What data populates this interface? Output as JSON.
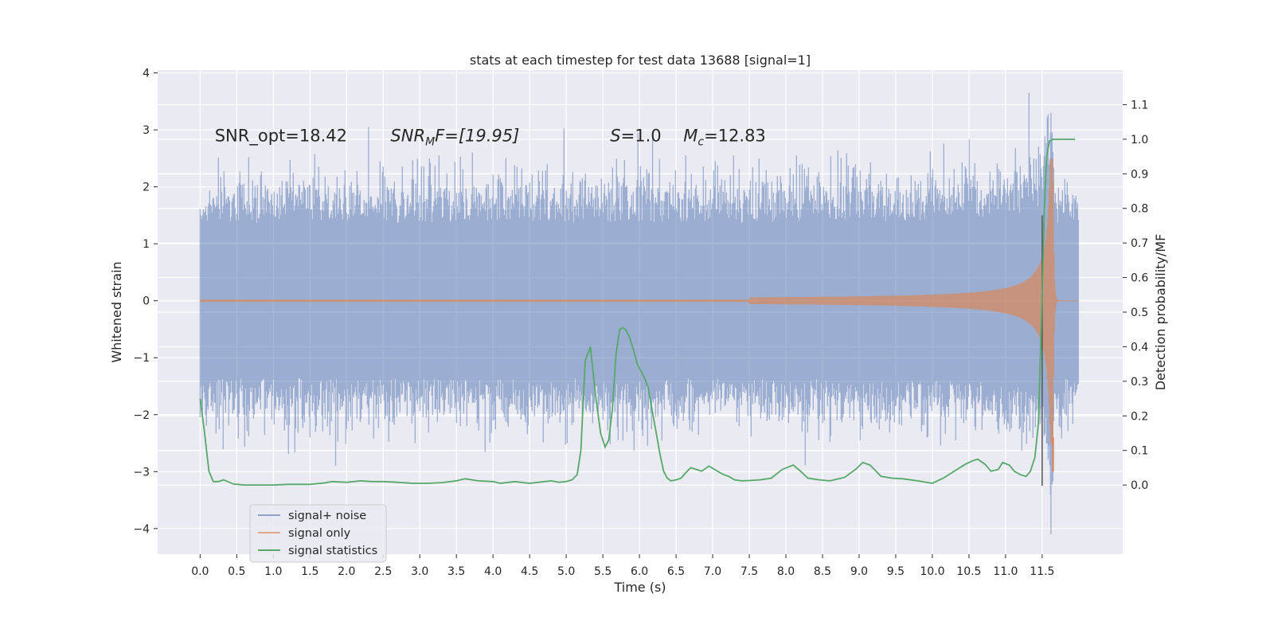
{
  "chart_data": {
    "type": "line",
    "title": "stats at each timestep for test data 13688 [signal=1]",
    "xlabel": "Time (s)",
    "ylabel_left": "Whitened strain",
    "ylabel_right": "Detection probability/MF",
    "xlim": [
      -0.58,
      12.6
    ],
    "ylim_left": [
      -4.45,
      4.05
    ],
    "ylim_right": [
      -0.2,
      1.2
    ],
    "x_ticks": [
      0.0,
      0.5,
      1.0,
      1.5,
      2.0,
      2.5,
      3.0,
      3.5,
      4.0,
      4.5,
      5.0,
      5.5,
      6.0,
      6.5,
      7.0,
      7.5,
      8.0,
      8.5,
      9.0,
      9.5,
      10.0,
      10.5,
      11.0,
      11.5
    ],
    "x_tick_labels": [
      "0.0",
      "0.5",
      "1.0",
      "1.5",
      "2.0",
      "2.5",
      "3.0",
      "3.5",
      "4.0",
      "4.5",
      "5.0",
      "5.5",
      "6.0",
      "6.5",
      "7.0",
      "7.5",
      "8.0",
      "8.5",
      "9.0",
      "9.5",
      "10.0",
      "10.5",
      "11.0",
      "11.5"
    ],
    "y_ticks_left": [
      4,
      3,
      2,
      1,
      0,
      -1,
      -2,
      -3,
      -4
    ],
    "y_tick_labels_left": [
      "4",
      "3",
      "2",
      "1",
      "0",
      "−1",
      "−2",
      "−3",
      "−4"
    ],
    "y_ticks_right": [
      1.1,
      1.0,
      0.9,
      0.8,
      0.7,
      0.6,
      0.5,
      0.4,
      0.3,
      0.2,
      0.1,
      0.0
    ],
    "y_tick_labels_right": [
      "1.1",
      "1.0",
      "0.9",
      "0.8",
      "0.7",
      "0.6",
      "0.5",
      "0.4",
      "0.3",
      "0.2",
      "0.1",
      "0.0"
    ],
    "grid": true,
    "legend_position": "lower-left",
    "annotations": {
      "snr_opt": "SNR_opt=18.42",
      "snr_mf_main": "SNR",
      "snr_mf_sub": "M",
      "snr_mf_rest": "F=[19.95]",
      "s_main": "S",
      "s_rest": "=1.0",
      "mc_main": "M",
      "mc_sub": "c",
      "mc_rest": "=12.83"
    },
    "colors": {
      "background": "#eaeaf2",
      "grid": "#ffffff",
      "noise": "#4c72b0",
      "signal": "#dd8452",
      "stats": "#55a868",
      "marker": "#555555"
    },
    "series": [
      {
        "name": "signal+ noise",
        "axis": "left",
        "envelope": {
          "t_start": 0.0,
          "t_end": 12.0,
          "core_abs": 1.0,
          "typical_peak_abs": 1.9
        },
        "notable_peaks": [
          {
            "x": 1.85,
            "y": -2.9
          },
          {
            "x": 2.3,
            "y": 3.05
          },
          {
            "x": 5.98,
            "y": 2.95
          },
          {
            "x": 6.18,
            "y": 2.95
          },
          {
            "x": 11.32,
            "y": 3.65
          },
          {
            "x": 11.62,
            "y": 3.3
          },
          {
            "x": 11.62,
            "y": -4.1
          }
        ]
      },
      {
        "name": "signal only",
        "axis": "left",
        "chirp": {
          "t_start": 0.0,
          "t_merger": 11.65,
          "t_end": 12.0,
          "peak_abs": 2.5,
          "flat_until": 7.5
        }
      },
      {
        "name": "signal statistics",
        "axis": "right",
        "x": [
          0.0,
          0.05,
          0.12,
          0.18,
          0.25,
          0.32,
          0.45,
          0.6,
          0.8,
          1.0,
          1.2,
          1.5,
          1.7,
          1.8,
          2.0,
          2.2,
          2.35,
          2.5,
          2.7,
          2.9,
          3.1,
          3.3,
          3.5,
          3.62,
          3.8,
          4.0,
          4.1,
          4.3,
          4.5,
          4.7,
          4.8,
          4.9,
          5.0,
          5.08,
          5.15,
          5.2,
          5.26,
          5.33,
          5.4,
          5.47,
          5.53,
          5.58,
          5.63,
          5.68,
          5.73,
          5.77,
          5.81,
          5.86,
          5.92,
          5.97,
          6.02,
          6.07,
          6.12,
          6.17,
          6.23,
          6.28,
          6.33,
          6.38,
          6.43,
          6.5,
          6.57,
          6.63,
          6.7,
          6.78,
          6.85,
          6.95,
          7.05,
          7.15,
          7.22,
          7.3,
          7.4,
          7.5,
          7.65,
          7.8,
          7.95,
          8.1,
          8.2,
          8.3,
          8.45,
          8.6,
          8.8,
          8.95,
          9.05,
          9.15,
          9.3,
          9.45,
          9.6,
          9.8,
          10.0,
          10.15,
          10.3,
          10.45,
          10.55,
          10.62,
          10.72,
          10.8,
          10.9,
          10.96,
          11.05,
          11.12,
          11.2,
          11.28,
          11.34,
          11.4,
          11.45,
          11.5,
          11.53,
          11.56,
          11.6,
          11.65,
          11.75,
          11.85,
          11.95
        ],
        "values": [
          0.25,
          0.17,
          0.04,
          0.01,
          0.01,
          0.015,
          0.003,
          0.0,
          0.0,
          0.0,
          0.002,
          0.002,
          0.006,
          0.01,
          0.008,
          0.012,
          0.01,
          0.01,
          0.008,
          0.005,
          0.005,
          0.007,
          0.012,
          0.018,
          0.012,
          0.01,
          0.005,
          0.01,
          0.005,
          0.01,
          0.012,
          0.008,
          0.01,
          0.015,
          0.03,
          0.1,
          0.36,
          0.4,
          0.26,
          0.15,
          0.11,
          0.13,
          0.22,
          0.38,
          0.45,
          0.455,
          0.45,
          0.43,
          0.39,
          0.35,
          0.33,
          0.31,
          0.28,
          0.22,
          0.15,
          0.09,
          0.04,
          0.02,
          0.012,
          0.015,
          0.02,
          0.035,
          0.05,
          0.045,
          0.04,
          0.055,
          0.042,
          0.03,
          0.025,
          0.015,
          0.012,
          0.013,
          0.015,
          0.02,
          0.045,
          0.058,
          0.04,
          0.02,
          0.015,
          0.012,
          0.022,
          0.045,
          0.065,
          0.058,
          0.025,
          0.02,
          0.018,
          0.012,
          0.005,
          0.02,
          0.04,
          0.06,
          0.07,
          0.075,
          0.06,
          0.04,
          0.045,
          0.065,
          0.058,
          0.04,
          0.03,
          0.025,
          0.04,
          0.08,
          0.18,
          0.55,
          0.8,
          0.95,
          0.995,
          1.0,
          1.0,
          1.0,
          1.0
        ]
      }
    ],
    "legend": [
      "signal+ noise",
      "signal only",
      "signal statistics"
    ],
    "merger_marker": {
      "x": 11.5,
      "y_from": -3.25,
      "y_to": 1.5
    }
  }
}
